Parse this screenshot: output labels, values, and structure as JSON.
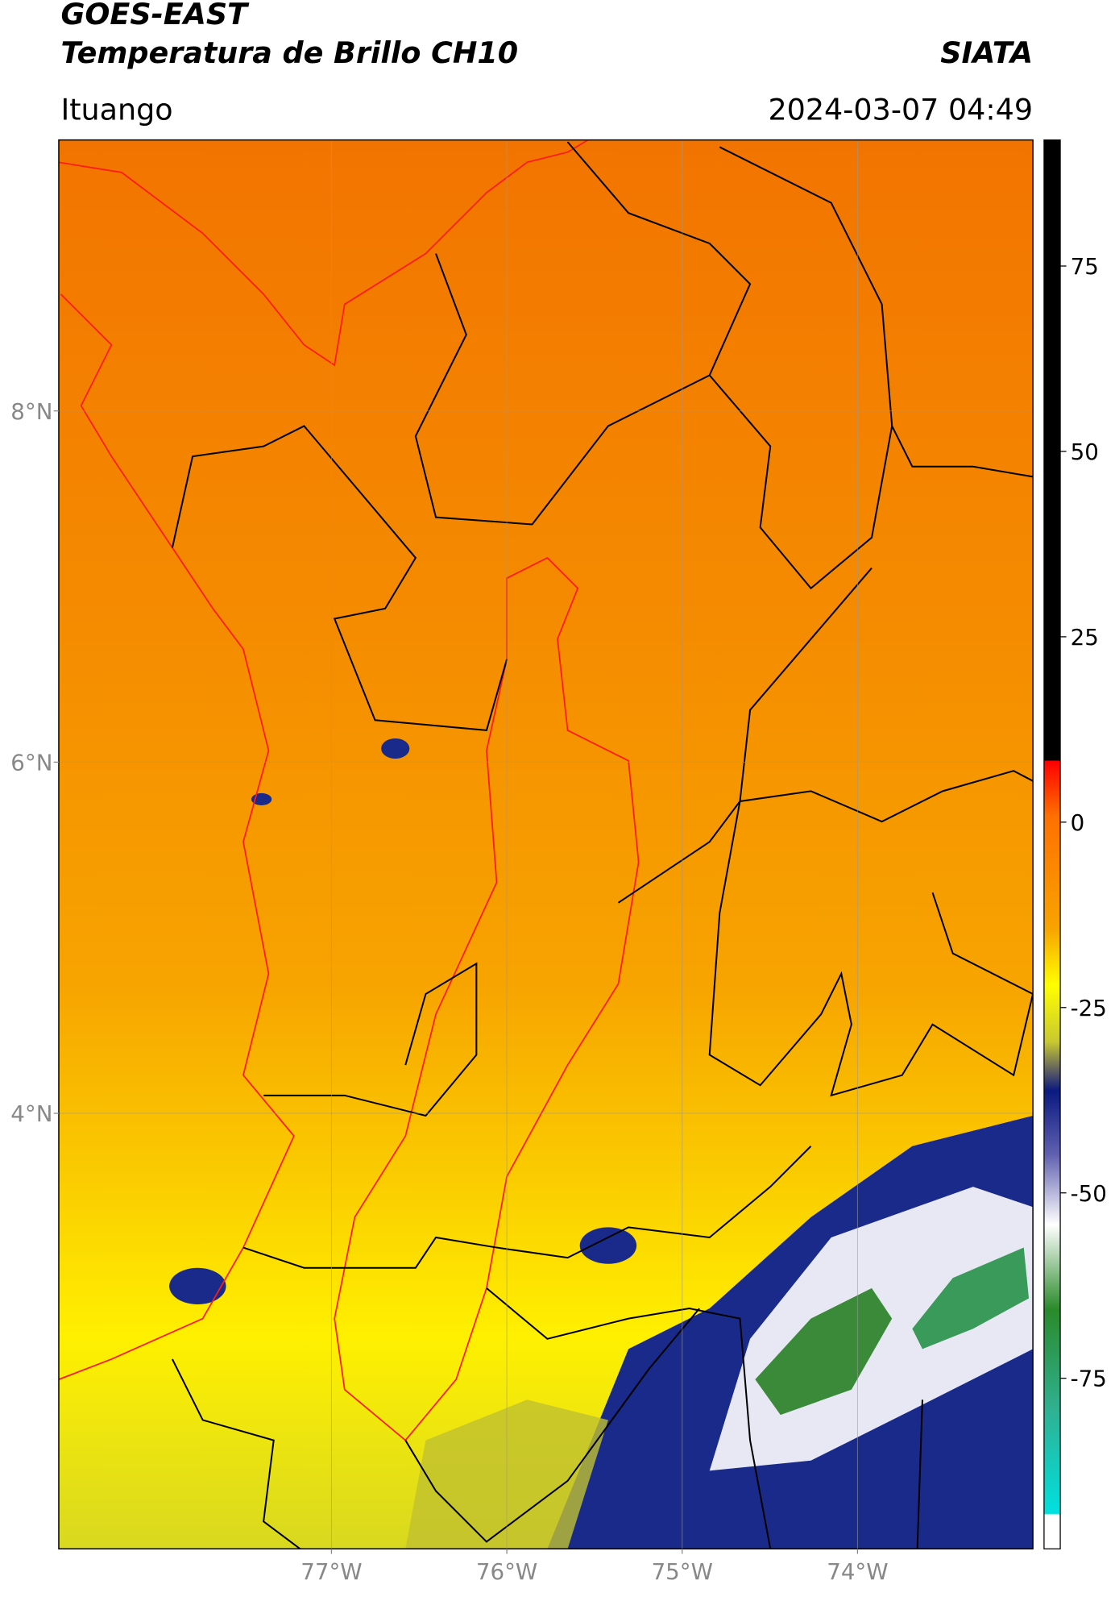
{
  "header": {
    "title": "GOES-EAST",
    "subtitle": "Temperatura de Brillo CH10",
    "source": "SIATA",
    "location": "Ituango",
    "datetime": "2024-03-07 04:49"
  },
  "map": {
    "xlim": [
      -78.555,
      -73.0
    ],
    "ylim": [
      1.52,
      9.543
    ],
    "xticks": [
      {
        "value": -77,
        "label": "77°W"
      },
      {
        "value": -76,
        "label": "76°W"
      },
      {
        "value": -75,
        "label": "75°W"
      },
      {
        "value": -74,
        "label": "74°W"
      }
    ],
    "yticks": [
      {
        "value": 8,
        "label": "8°N"
      },
      {
        "value": 6,
        "label": "6°N"
      },
      {
        "value": 4,
        "label": "4°N"
      }
    ],
    "grid": true
  },
  "colorbar": {
    "lim": [
      -98,
      92
    ],
    "ticks": [
      75,
      50,
      25,
      0,
      -25,
      -50,
      -75
    ]
  }
}
